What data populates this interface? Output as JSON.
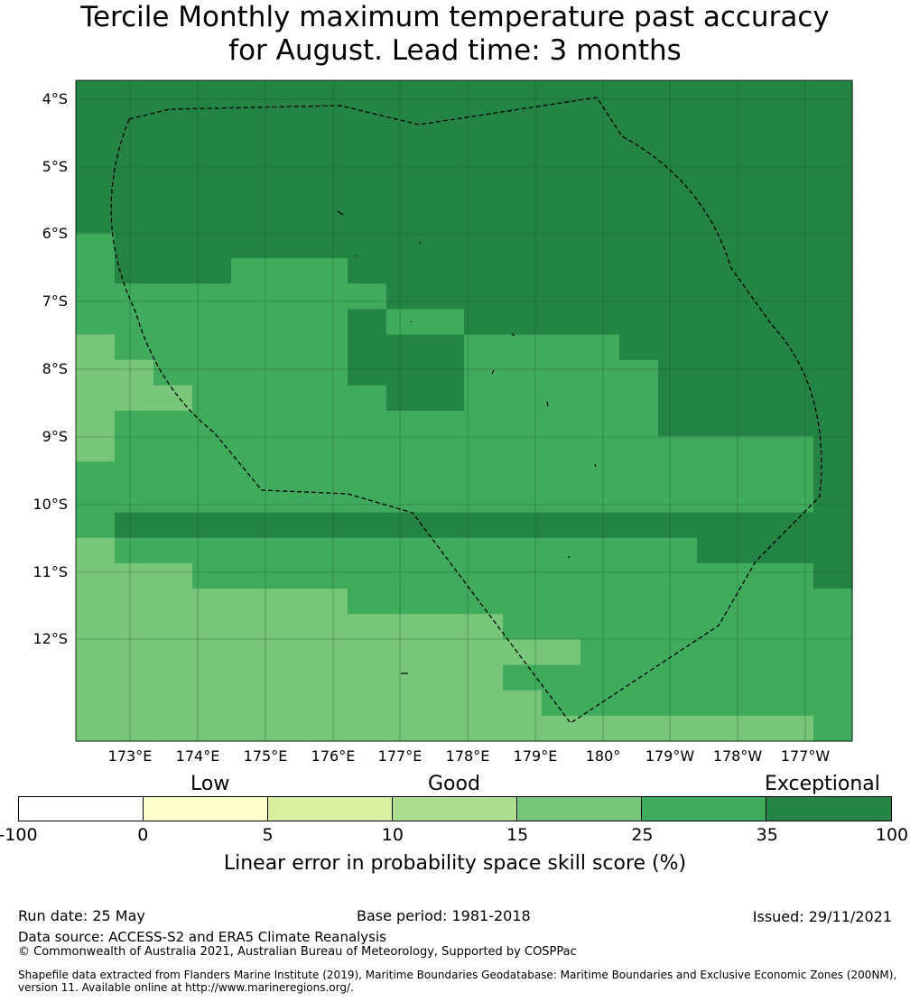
{
  "title_line1": "Tercile Monthly maximum temperature past accuracy",
  "title_line2": "for August. Lead time: 3 months",
  "map": {
    "lat_labels": [
      "4°S",
      "5°S",
      "6°S",
      "7°S",
      "8°S",
      "9°S",
      "10°S",
      "11°S",
      "12°S"
    ],
    "lon_labels": [
      "173°E",
      "174°E",
      "175°E",
      "176°E",
      "177°E",
      "178°E",
      "179°E",
      "180°",
      "179°W",
      "178°W",
      "177°W"
    ],
    "colors": {
      "c1": "#ffffcc",
      "c2": "#d9f0a3",
      "c3": "#addd8e",
      "c4": "#78c679",
      "c5": "#41ab5d",
      "c6": "#238443"
    },
    "grid_rows": [
      "66666666666666666666",
      "66666666666666666666",
      "66666666666666666666",
      "66666666666666666666",
      "66666666666666666666",
      "66666666666666666666",
      "56666666666666666666",
      "56665556666666666666",
      "55555555666666666666",
      "55555556556666666666",
      "45555556665555666666",
      "44555556665555566666",
      "44455555665555566666",
      "45555555555555566666",
      "45555555555555555556",
      "55555555555555555556",
      "55555555555555555556",
      "56666666666666666666",
      "45555555555555556666",
      "44455555555555555556",
      "44444445555555555555",
      "44444444444555555555",
      "44444444444445555555",
      "44444444444555555555",
      "44444444444455555555",
      "44444444444444444445"
    ]
  },
  "colorbar": {
    "category_labels": [
      "Low",
      "Good",
      "Exceptional"
    ],
    "segment_colors": [
      "#ffffff",
      "#ffffcc",
      "#d9f0a3",
      "#addd8e",
      "#78c679",
      "#41ab5d",
      "#238443"
    ],
    "tick_labels": [
      "-100",
      "0",
      "5",
      "10",
      "15",
      "25",
      "35",
      "100"
    ],
    "title": "Linear error in probability space skill score (%)"
  },
  "footer": {
    "run_date": "Run date: 25 May",
    "base_period": "Base period: 1981-2018",
    "issued": "Issued: 29/11/2021",
    "data_source": "Data source: ACCESS-S2 and ERA5 Climate Reanalysis",
    "copyright": "© Commonwealth of Australia 2021, Australian Bureau of Meteorology, Supported by COSPPac",
    "shapefile_line1": "Shapefile data extracted from Flanders Marine Institute (2019), Maritime Boundaries Geodatabase: Maritime Boundaries and Exclusive Economic Zones (200NM),",
    "shapefile_line2": "version 11. Available online at http://www.marineregions.org/."
  }
}
